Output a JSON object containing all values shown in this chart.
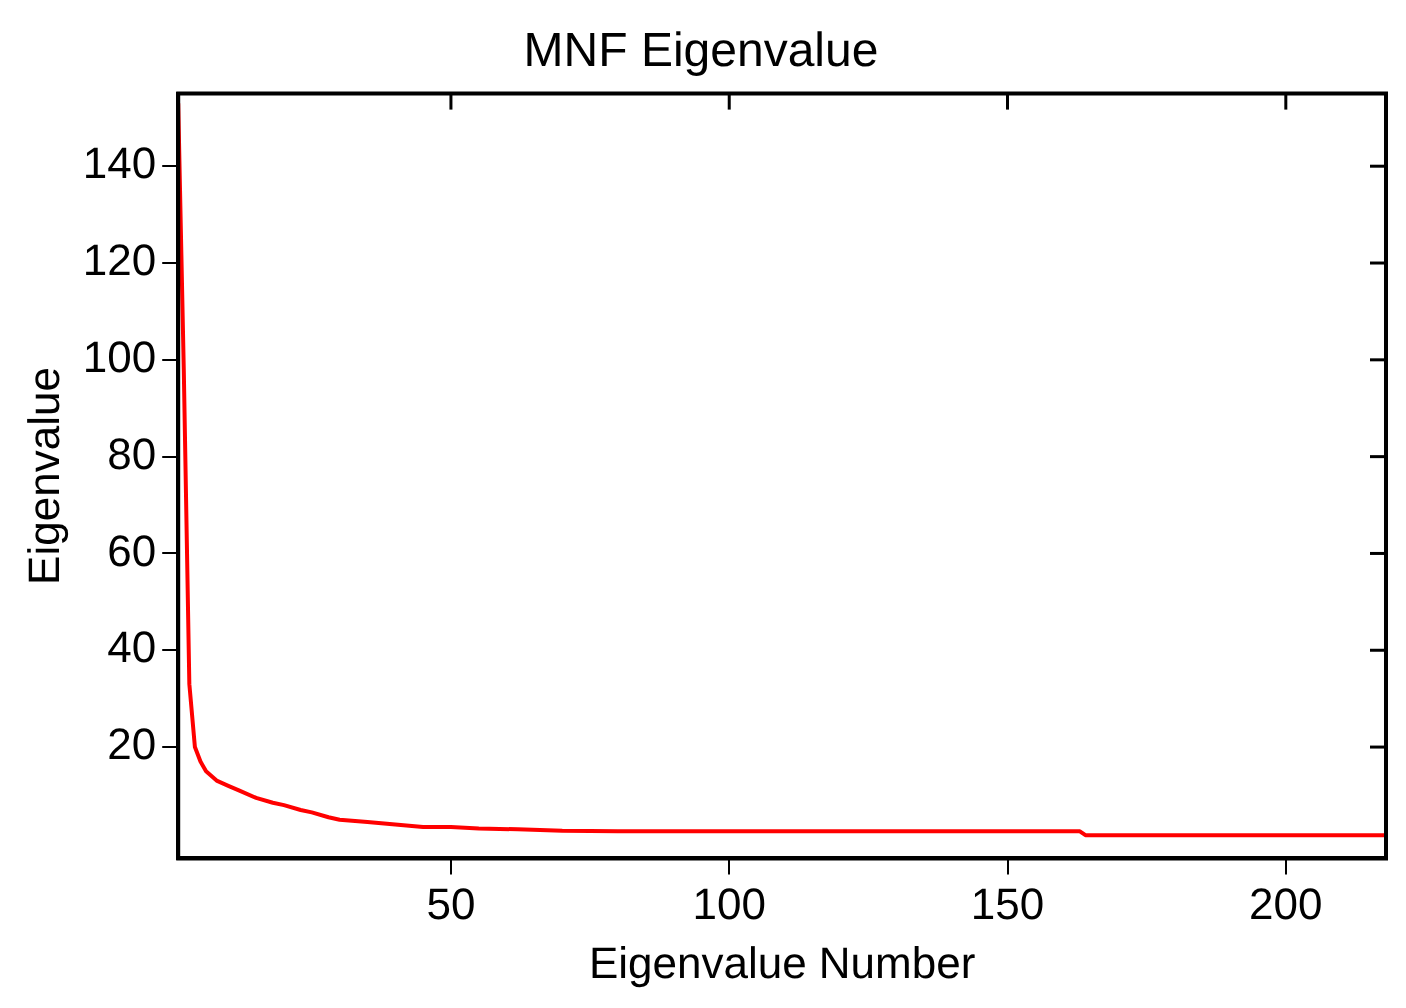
{
  "chart_data": {
    "type": "line",
    "title": "MNF Eigenvalue",
    "xlabel": "Eigenvalue Number",
    "ylabel": "Eigenvalue",
    "xlim": [
      1,
      218
    ],
    "ylim": [
      -3,
      155
    ],
    "xticks": [
      50,
      100,
      150,
      200
    ],
    "yticks": [
      20,
      40,
      60,
      80,
      100,
      120,
      140
    ],
    "grid": false,
    "legend": false,
    "series": [
      {
        "color": "#ff0000",
        "x": [
          1,
          2,
          3,
          4,
          5,
          6,
          8,
          10,
          12,
          15,
          18,
          20,
          23,
          25,
          28,
          30,
          35,
          40,
          45,
          50,
          55,
          62,
          70,
          80,
          100,
          120,
          140,
          163,
          164,
          180,
          200,
          218
        ],
        "values": [
          153,
          98,
          33,
          20,
          17,
          15,
          13,
          12,
          11,
          9.5,
          8.5,
          8,
          7,
          6.5,
          5.5,
          5,
          4.5,
          4,
          3.5,
          3.5,
          3.2,
          3,
          2.7,
          2.6,
          2.6,
          2.6,
          2.6,
          2.6,
          1.8,
          1.8,
          1.8,
          1.8
        ]
      }
    ]
  }
}
